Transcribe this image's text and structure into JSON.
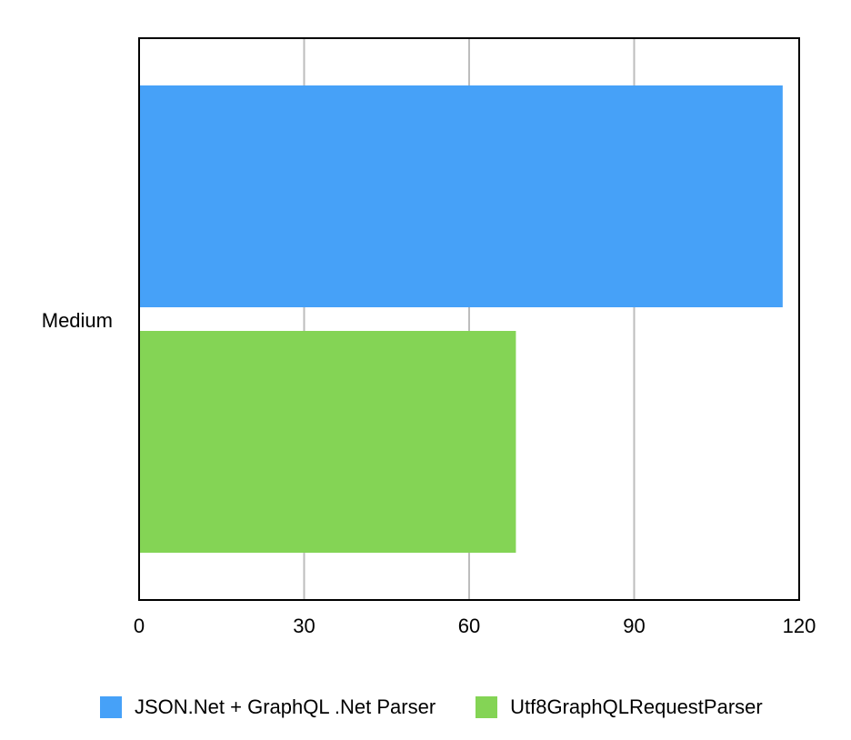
{
  "chart_data": {
    "type": "bar",
    "orientation": "horizontal",
    "categories": [
      "Medium"
    ],
    "series": [
      {
        "name": "JSON.Net + GraphQL .Net Parser",
        "values": [
          117
        ],
        "color": "#46a1f8"
      },
      {
        "name": "Utf8GraphQLRequestParser",
        "values": [
          68.5
        ],
        "color": "#84d455"
      }
    ],
    "xlim": [
      0,
      120
    ],
    "x_ticks": [
      0,
      30,
      60,
      90,
      120
    ],
    "x_tick_labels": [
      "0",
      "30",
      "60",
      "90",
      "120"
    ],
    "grid": "vertical",
    "legend_position": "bottom",
    "title": "",
    "xlabel": "",
    "ylabel": ""
  }
}
